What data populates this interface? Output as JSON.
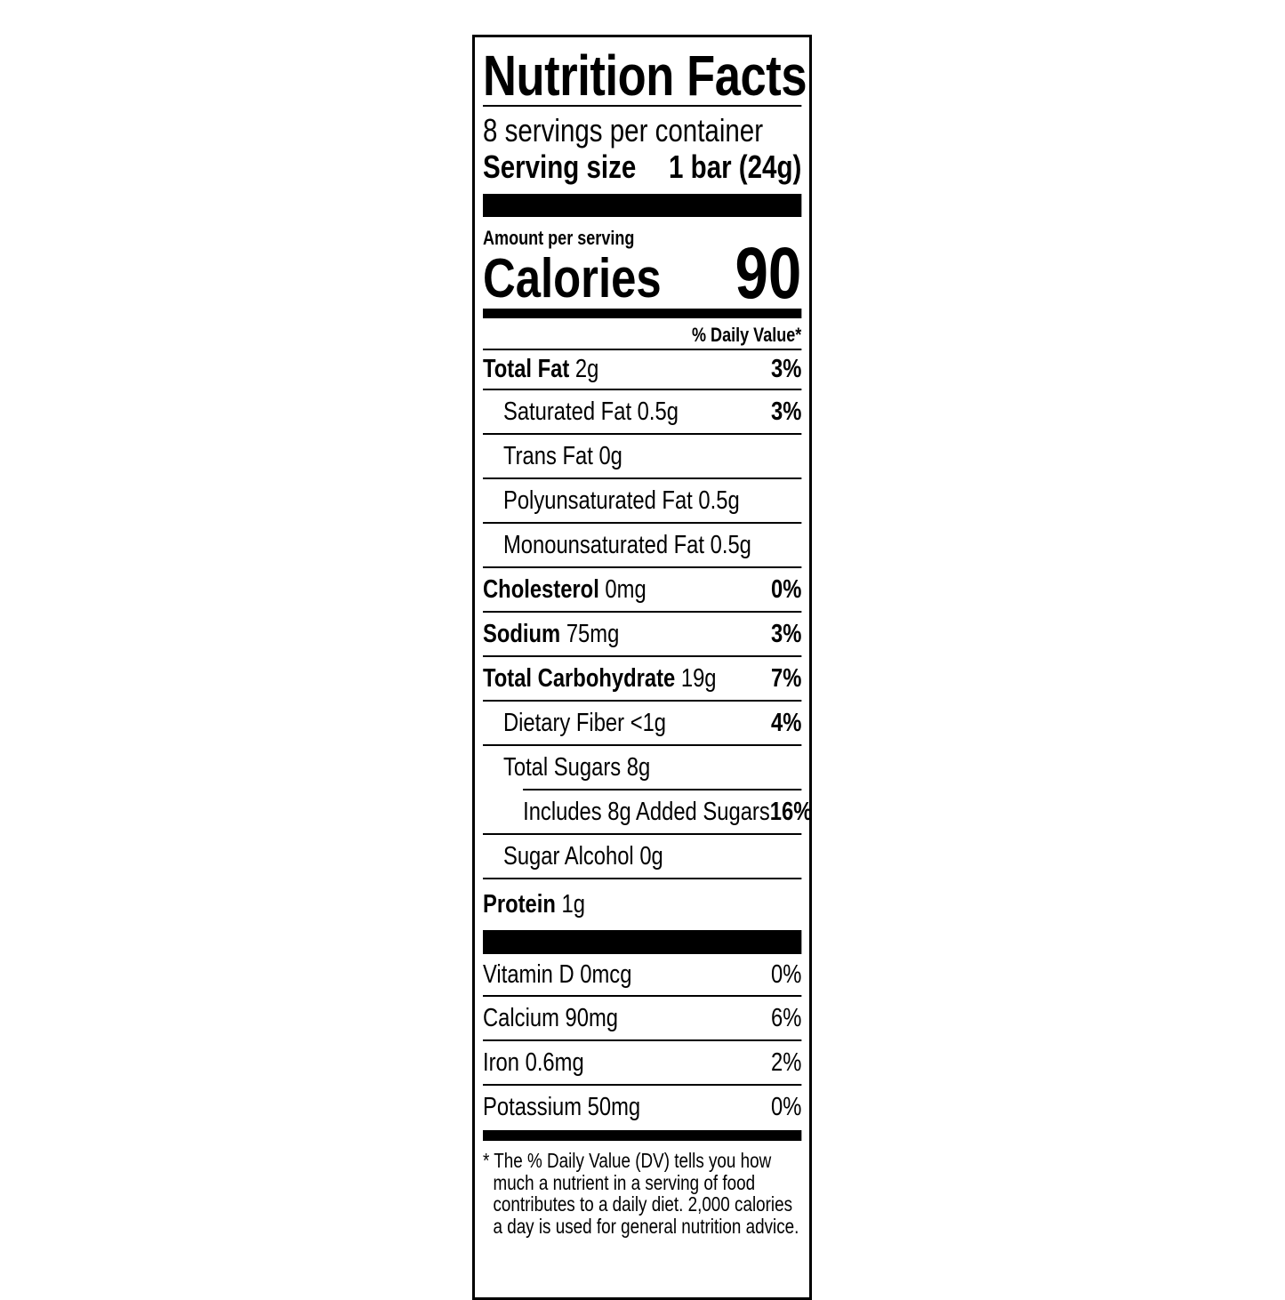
{
  "title": "Nutrition Facts",
  "servings_per_container": "8 servings per container",
  "serving_size": {
    "label": "Serving size",
    "value": "1 bar (24g)"
  },
  "amount_per_serving": "Amount per serving",
  "calories": {
    "label": "Calories",
    "value": "90"
  },
  "daily_value_header": "% Daily Value*",
  "nutrients": [
    {
      "name": "Total Fat",
      "amount": "2g",
      "dv": "3%",
      "bold": true,
      "indent": 0
    },
    {
      "name": "Saturated Fat",
      "amount": "0.5g",
      "dv": "3%",
      "bold": false,
      "indent": 1
    },
    {
      "name": "Trans Fat",
      "amount": "0g",
      "dv": "",
      "bold": false,
      "indent": 1
    },
    {
      "name": "Polyunsaturated Fat",
      "amount": "0.5g",
      "dv": "",
      "bold": false,
      "indent": 1
    },
    {
      "name": "Monounsaturated Fat",
      "amount": "0.5g",
      "dv": "",
      "bold": false,
      "indent": 1
    },
    {
      "name": "Cholesterol",
      "amount": "0mg",
      "dv": "0%",
      "bold": true,
      "indent": 0
    },
    {
      "name": "Sodium",
      "amount": "75mg",
      "dv": "3%",
      "bold": true,
      "indent": 0
    },
    {
      "name": "Total Carbohydrate",
      "amount": "19g",
      "dv": "7%",
      "bold": true,
      "indent": 0
    },
    {
      "name": "Dietary Fiber",
      "amount": "<1g",
      "dv": "4%",
      "bold": false,
      "indent": 1
    },
    {
      "name": "Total Sugars",
      "amount": "8g",
      "dv": "",
      "bold": false,
      "indent": 1
    },
    {
      "name": "Includes 8g Added Sugars",
      "amount": "",
      "dv": "16%",
      "bold": false,
      "indent": 2
    },
    {
      "name": "Sugar Alcohol",
      "amount": "0g",
      "dv": "",
      "bold": false,
      "indent": 1
    },
    {
      "name": "Protein",
      "amount": "1g",
      "dv": "",
      "bold": true,
      "indent": 0
    }
  ],
  "vitamins": [
    {
      "name": "Vitamin D",
      "amount": "0mcg",
      "dv": "0%"
    },
    {
      "name": "Calcium",
      "amount": "90mg",
      "dv": "6%"
    },
    {
      "name": "Iron",
      "amount": "0.6mg",
      "dv": "2%"
    },
    {
      "name": "Potassium",
      "amount": "50mg",
      "dv": "0%"
    }
  ],
  "footnote": "* The % Daily Value (DV) tells you how much a nutrient in a serving of food contributes to a daily diet. 2,000 calories a day is used for general nutrition advice."
}
